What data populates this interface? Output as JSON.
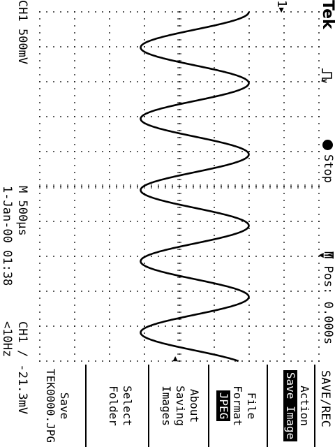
{
  "header": {
    "brand": "Tek",
    "trigger_icon": "trigger-edge-icon",
    "run_state": "Stop",
    "marker_label": "T",
    "position": "M Pos: 0.000s"
  },
  "footer": {
    "channel_scale": "CH1  500mV",
    "timebase": "M 500µs",
    "trigger": "CH1 ∕ -21.3mV",
    "datetime": "1-Jan-00 01:38",
    "frequency": "<10Hz"
  },
  "menu": {
    "title": "SAVE/REC",
    "action": {
      "label": "Action",
      "value": "Save Image"
    },
    "file_format": {
      "label_line1": "File",
      "label_line2": "Format",
      "value": "JPEG"
    },
    "about": {
      "line1": "About",
      "line2": "Saving",
      "line3": "Images"
    },
    "select_folder": {
      "line1": "Select",
      "line2": "Folder"
    },
    "save": {
      "line1": "Save",
      "line2": "TEK0000.JPG"
    }
  },
  "waveform": {
    "channel": "CH1",
    "marker": "1",
    "color": "#000000",
    "shape": "sine",
    "cycles_on_screen": 4.9,
    "amplitude_divisions": 3.1,
    "start_phase_deg": 90
  }
}
